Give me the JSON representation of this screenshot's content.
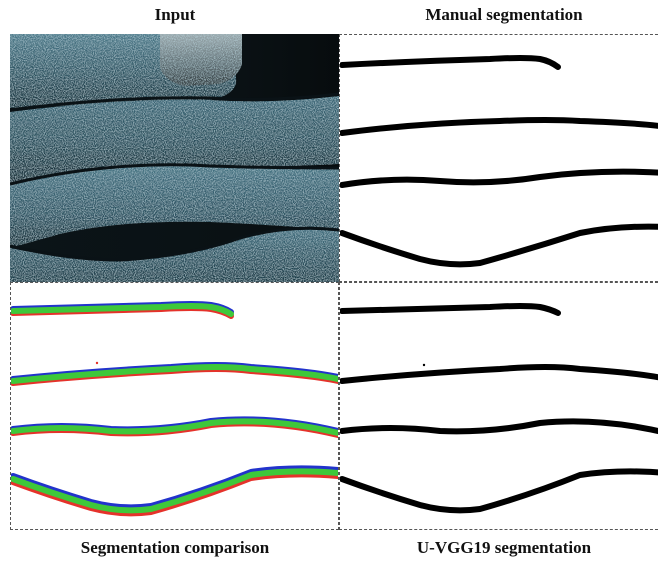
{
  "captions": {
    "input": "Input",
    "manual": "Manual segmentation",
    "comparison": "Segmentation comparison",
    "uvgg": "U-VGG19 segmentation"
  },
  "colors": {
    "ground_truth": "#e5322b",
    "prediction": "#2233cc",
    "overlap": "#3ec83a",
    "mask": "#000000",
    "photo_dark": "#0e1a1f",
    "photo_mid": "#2d5362"
  }
}
